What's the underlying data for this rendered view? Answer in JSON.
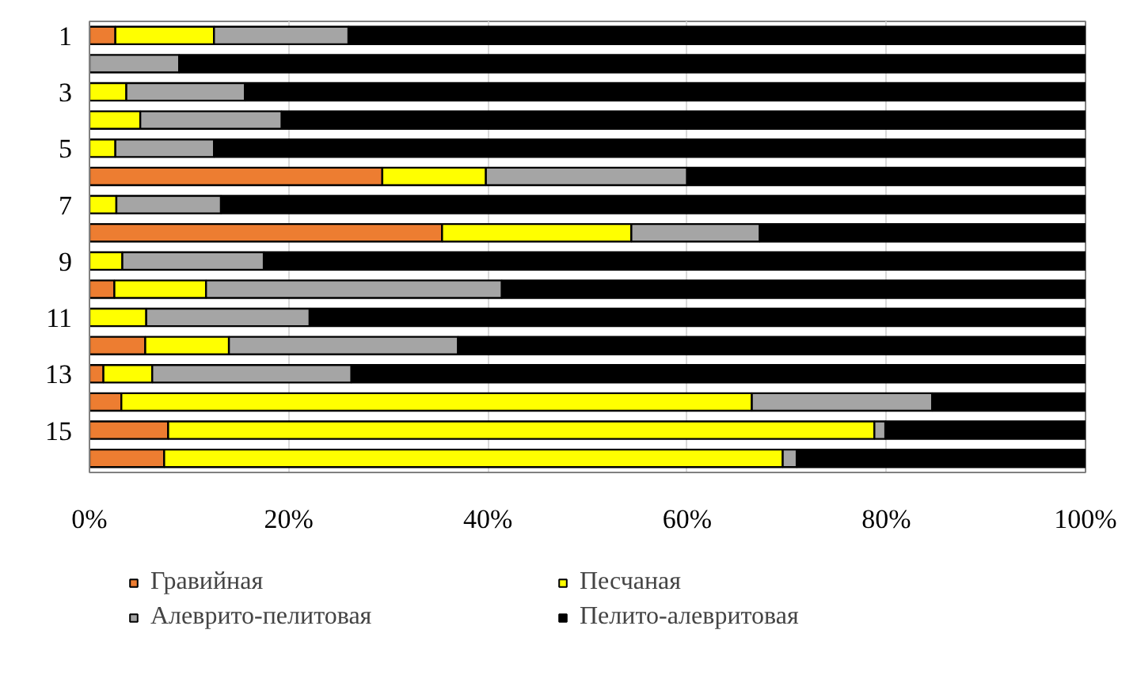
{
  "chart_data": {
    "type": "bar",
    "orientation": "horizontal",
    "stacked": true,
    "categories": [
      "1",
      null,
      "3",
      null,
      "5",
      null,
      "7",
      null,
      "9",
      null,
      "11",
      null,
      "13",
      null,
      "15",
      null
    ],
    "series": [
      {
        "name": "Гравийная",
        "color": "#ed7d31",
        "values": [
          2.6,
          0,
          0,
          0,
          0,
          29.4,
          0,
          35.4,
          0,
          2.5,
          0,
          5.6,
          1.4,
          3.2,
          7.9,
          7.5
        ]
      },
      {
        "name": "Песчаная",
        "color": "#ffff00",
        "values": [
          9.9,
          0,
          3.7,
          5.1,
          2.6,
          10.4,
          2.7,
          19,
          3.3,
          9.2,
          5.7,
          8.4,
          4.9,
          63.3,
          70.9,
          62.1
        ]
      },
      {
        "name": "Алеврито-пелитовая",
        "color": "#a5a5a5",
        "values": [
          13.5,
          9,
          11.9,
          14.2,
          9.9,
          20.2,
          10.5,
          12.9,
          14.2,
          29.7,
          16.4,
          23,
          20,
          18.1,
          1.1,
          1.4
        ]
      },
      {
        "name": "Пелито-алевритовая",
        "color": "#000000",
        "values": [
          74,
          91,
          84.4,
          80.7,
          87.5,
          40,
          86.8,
          32.7,
          82.5,
          58.6,
          77.9,
          63,
          73.7,
          15.4,
          20.1,
          29
        ]
      }
    ],
    "xlim": [
      0,
      100
    ],
    "xticks": [
      {
        "value": 0,
        "label": "0%"
      },
      {
        "value": 20,
        "label": "20%"
      },
      {
        "value": 40,
        "label": "40%"
      },
      {
        "value": 60,
        "label": "60%"
      },
      {
        "value": 80,
        "label": "80%"
      },
      {
        "value": 100,
        "label": "100%"
      }
    ],
    "grid": "x",
    "legend": "bottom"
  }
}
